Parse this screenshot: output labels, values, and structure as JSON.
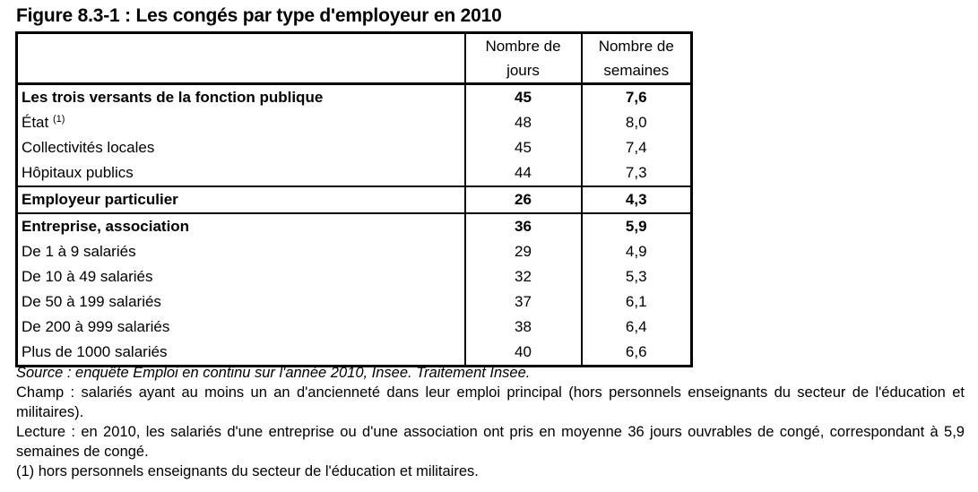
{
  "title": "Figure 8.3-1 : Les congés par type d'employeur en 2010",
  "headers": {
    "col1_line1": "Nombre de",
    "col1_line2": "jours",
    "col2_line1": "Nombre de",
    "col2_line2": "semaines"
  },
  "rows": [
    {
      "label": "Les trois versants de la fonction publique",
      "jours": "45",
      "semaines": "7,6",
      "bold": true,
      "group_start": true
    },
    {
      "label": "État",
      "sup": "(1)",
      "jours": "48",
      "semaines": "8,0"
    },
    {
      "label": "Collectivités locales",
      "jours": "45",
      "semaines": "7,4"
    },
    {
      "label": "Hôpitaux publics",
      "jours": "44",
      "semaines": "7,3"
    },
    {
      "label": "Employeur particulier",
      "jours": "26",
      "semaines": "4,3",
      "bold": true,
      "group_start": true
    },
    {
      "label": "Entreprise, association",
      "jours": "36",
      "semaines": "5,9",
      "bold": true,
      "group_start": true
    },
    {
      "label": "De 1 à 9 salariés",
      "jours": "29",
      "semaines": "4,9"
    },
    {
      "label": "De 10 à 49 salariés",
      "jours": "32",
      "semaines": "5,3"
    },
    {
      "label": "De 50 à 199 salariés",
      "jours": "37",
      "semaines": "6,1"
    },
    {
      "label": "De 200 à 999 salariés",
      "jours": "38",
      "semaines": "6,4"
    },
    {
      "label": "Plus de 1000 salariés",
      "jours": "40",
      "semaines": "6,6"
    }
  ],
  "notes": {
    "source": "Source : enquête Emploi en continu sur l'année 2010, Insee. Traitement Insee.",
    "champ": "Champ : salariés ayant au moins un an d'ancienneté dans leur emploi principal (hors personnels enseignants du secteur de l'éducation et militaires).",
    "lecture": "Lecture : en 2010, les salariés d'une entreprise ou d'une association ont pris en moyenne 36 jours ouvrables de congé, correspondant à 5,9 semaines de congé.",
    "footnote": "(1) hors personnels enseignants du secteur de l'éducation et militaires."
  }
}
